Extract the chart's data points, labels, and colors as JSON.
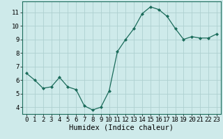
{
  "x": [
    0,
    1,
    2,
    3,
    4,
    5,
    6,
    7,
    8,
    9,
    10,
    11,
    12,
    13,
    14,
    15,
    16,
    17,
    18,
    19,
    20,
    21,
    22,
    23
  ],
  "y": [
    6.5,
    6.0,
    5.4,
    5.5,
    6.2,
    5.5,
    5.3,
    4.1,
    3.8,
    4.0,
    5.2,
    8.1,
    9.0,
    9.8,
    10.9,
    11.4,
    11.2,
    10.7,
    9.8,
    9.0,
    9.2,
    9.1,
    9.1,
    9.4
  ],
  "xlabel": "Humidex (Indice chaleur)",
  "xlim": [
    -0.5,
    23.5
  ],
  "ylim": [
    3.5,
    11.8
  ],
  "yticks": [
    4,
    5,
    6,
    7,
    8,
    9,
    10,
    11
  ],
  "xticks": [
    0,
    1,
    2,
    3,
    4,
    5,
    6,
    7,
    8,
    9,
    10,
    11,
    12,
    13,
    14,
    15,
    16,
    17,
    18,
    19,
    20,
    21,
    22,
    23
  ],
  "line_color": "#1a6b5a",
  "marker": "D",
  "marker_size": 2.0,
  "bg_color": "#ceeaea",
  "grid_color": "#aed0d0",
  "xlabel_fontsize": 7.5,
  "tick_fontsize": 6.5
}
